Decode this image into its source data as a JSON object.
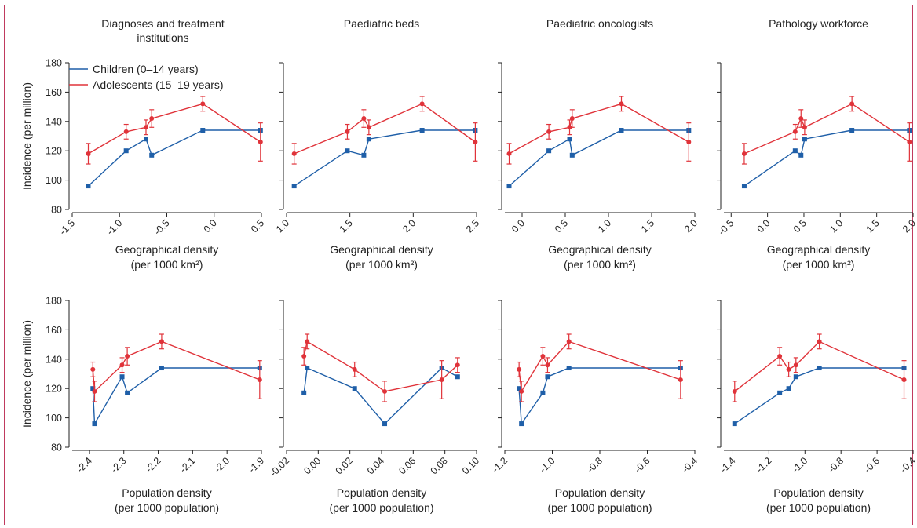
{
  "colors": {
    "children": "#1f5fa8",
    "adolescents": "#e0333a",
    "frame": "#c03a5e"
  },
  "legend": {
    "children": "Children (0–14 years)",
    "adolescents": "Adolescents (15–19 years)"
  },
  "ylabel": "Incidence (per million)",
  "chart_data": [
    {
      "type": "line",
      "title": "Diagnoses and treatment institutions",
      "xlabel": "Geographical density",
      "xlabel2": "(per 1000 km²)",
      "xlim": [
        -1.5,
        0.5
      ],
      "xticks": [
        "-1.5",
        "-1.0",
        "-0.5",
        "0.0",
        "0.5"
      ],
      "xtickvals": [
        -1.5,
        -1.0,
        -0.5,
        0.0,
        0.5
      ],
      "ylim": [
        80,
        180
      ],
      "yticks": [
        "80",
        "100",
        "120",
        "140",
        "160",
        "180"
      ],
      "ytickvals": [
        80,
        100,
        120,
        140,
        160,
        180
      ],
      "series": [
        {
          "name": "Children (0–14 years)",
          "x": [
            -1.33,
            -0.93,
            -0.72,
            -0.66,
            -0.12,
            0.49
          ],
          "y": [
            96,
            120,
            128,
            117,
            134,
            134
          ],
          "err": [
            0,
            0,
            0,
            0,
            0,
            0
          ]
        },
        {
          "name": "Adolescents (15–19 years)",
          "x": [
            -1.33,
            -0.93,
            -0.72,
            -0.66,
            -0.12,
            0.49
          ],
          "y": [
            118,
            133,
            136,
            142,
            152,
            126
          ],
          "err": [
            7,
            5,
            5,
            6,
            5,
            13
          ]
        }
      ]
    },
    {
      "type": "line",
      "title": "Paediatric beds",
      "xlabel": "Geographical density",
      "xlabel2": "(per 1000 km²)",
      "xlim": [
        1.0,
        2.5
      ],
      "xticks": [
        "1.0",
        "1.5",
        "2.0",
        "2.5"
      ],
      "xtickvals": [
        1.0,
        1.5,
        2.0,
        2.5
      ],
      "ylim": [
        80,
        180
      ],
      "yticks": [],
      "ytickvals": [
        80,
        100,
        120,
        140,
        160,
        180
      ],
      "series": [
        {
          "name": "Children (0–14 years)",
          "x": [
            1.06,
            1.48,
            1.61,
            1.65,
            2.07,
            2.49
          ],
          "y": [
            96,
            120,
            117,
            128,
            134,
            134
          ],
          "err": [
            0,
            0,
            0,
            0,
            0,
            0
          ]
        },
        {
          "name": "Adolescents (15–19 years)",
          "x": [
            1.06,
            1.48,
            1.61,
            1.65,
            2.07,
            2.49
          ],
          "y": [
            118,
            133,
            142,
            136,
            152,
            126
          ],
          "err": [
            7,
            5,
            6,
            5,
            5,
            13
          ]
        }
      ]
    },
    {
      "type": "line",
      "title": "Paediatric oncologists",
      "xlabel": "Geographical density",
      "xlabel2": "(per 1000 km²)",
      "xlim": [
        -0.2,
        2.0
      ],
      "xticks": [
        "0.0",
        "0.5",
        "1.0",
        "1.5",
        "2.0"
      ],
      "xtickvals": [
        0.0,
        0.5,
        1.0,
        1.5,
        2.0
      ],
      "ylim": [
        80,
        180
      ],
      "yticks": [],
      "ytickvals": [
        80,
        100,
        120,
        140,
        160,
        180
      ],
      "series": [
        {
          "name": "Children (0–14 years)",
          "x": [
            -0.15,
            0.31,
            0.55,
            0.58,
            1.15,
            1.93
          ],
          "y": [
            96,
            120,
            128,
            117,
            134,
            134
          ],
          "err": [
            0,
            0,
            0,
            0,
            0,
            0
          ]
        },
        {
          "name": "Adolescents (15–19 years)",
          "x": [
            -0.15,
            0.31,
            0.55,
            0.58,
            1.15,
            1.93
          ],
          "y": [
            118,
            133,
            136,
            142,
            152,
            126
          ],
          "err": [
            7,
            5,
            5,
            6,
            5,
            13
          ]
        }
      ]
    },
    {
      "type": "line",
      "title": "Pathology workforce",
      "xlabel": "Geographical density",
      "xlabel2": "(per 1000 km²)",
      "xlim": [
        -0.6,
        2.0
      ],
      "xticks": [
        "-0.5",
        "0.0",
        "0.5",
        "1.0",
        "1.5",
        "2.0"
      ],
      "xtickvals": [
        -0.5,
        0.0,
        0.5,
        1.0,
        1.5,
        2.0
      ],
      "ylim": [
        80,
        180
      ],
      "yticks": [],
      "ytickvals": [
        80,
        100,
        120,
        140,
        160,
        180
      ],
      "series": [
        {
          "name": "Children (0–14 years)",
          "x": [
            -0.32,
            0.38,
            0.46,
            0.51,
            1.16,
            1.95
          ],
          "y": [
            96,
            120,
            117,
            128,
            134,
            134
          ],
          "err": [
            0,
            0,
            0,
            0,
            0,
            0
          ]
        },
        {
          "name": "Adolescents (15–19 years)",
          "x": [
            -0.32,
            0.38,
            0.46,
            0.51,
            1.16,
            1.95
          ],
          "y": [
            118,
            133,
            142,
            136,
            152,
            126
          ],
          "err": [
            7,
            5,
            6,
            5,
            5,
            13
          ]
        }
      ]
    },
    {
      "type": "line",
      "title": "",
      "xlabel": "Population density",
      "xlabel2": "(per 1000 population)",
      "xlim": [
        -2.45,
        -1.9
      ],
      "xticks": [
        "-2.4",
        "-2.3",
        "-2.2",
        "-2.1",
        "-2.0",
        "-1.9"
      ],
      "xtickvals": [
        -2.4,
        -2.3,
        -2.2,
        -2.1,
        -2.0,
        -1.9
      ],
      "ylim": [
        80,
        180
      ],
      "yticks": [
        "80",
        "100",
        "120",
        "140",
        "160",
        "180"
      ],
      "ytickvals": [
        80,
        100,
        120,
        140,
        160,
        180
      ],
      "series": [
        {
          "name": "Children (0–14 years)",
          "x": [
            -2.39,
            -2.385,
            -2.305,
            -2.29,
            -2.19,
            -1.905
          ],
          "y": [
            120,
            96,
            128,
            117,
            134,
            134
          ],
          "err": [
            0,
            0,
            0,
            0,
            0,
            0
          ]
        },
        {
          "name": "Adolescents (15–19 years)",
          "x": [
            -2.39,
            -2.385,
            -2.305,
            -2.29,
            -2.19,
            -1.905
          ],
          "y": [
            133,
            118,
            136,
            142,
            152,
            126
          ],
          "err": [
            5,
            7,
            5,
            6,
            5,
            13
          ]
        }
      ]
    },
    {
      "type": "line",
      "title": "",
      "xlabel": "Population density",
      "xlabel2": "(per 1000 population)",
      "xlim": [
        -0.02,
        0.1
      ],
      "xticks": [
        "-0.02",
        "0.00",
        "0.02",
        "0.04",
        "0.06",
        "0.08",
        "0.10"
      ],
      "xtickvals": [
        -0.02,
        0.0,
        0.02,
        0.04,
        0.06,
        0.08,
        0.1
      ],
      "ylim": [
        80,
        180
      ],
      "yticks": [],
      "ytickvals": [
        80,
        100,
        120,
        140,
        160,
        180
      ],
      "series": [
        {
          "name": "Children (0–14 years)",
          "x": [
            -0.009,
            -0.007,
            0.023,
            0.042,
            0.078,
            0.088
          ],
          "y": [
            117,
            134,
            120,
            96,
            134,
            128
          ],
          "err": [
            0,
            0,
            0,
            0,
            0,
            0
          ]
        },
        {
          "name": "Adolescents (15–19 years)",
          "x": [
            -0.009,
            -0.007,
            0.023,
            0.042,
            0.078,
            0.088
          ],
          "y": [
            142,
            152,
            133,
            118,
            126,
            136
          ],
          "err": [
            6,
            5,
            5,
            7,
            13,
            5
          ]
        }
      ]
    },
    {
      "type": "line",
      "title": "",
      "xlabel": "Population density",
      "xlabel2": "(per 1000 population)",
      "xlim": [
        -1.2,
        -0.4
      ],
      "xticks": [
        "-1.2",
        "-1.0",
        "-0.8",
        "-0.6",
        "-0.4"
      ],
      "xtickvals": [
        -1.2,
        -1.0,
        -0.8,
        -0.6,
        -0.4
      ],
      "ylim": [
        80,
        180
      ],
      "yticks": [],
      "ytickvals": [
        80,
        100,
        120,
        140,
        160,
        180
      ],
      "series": [
        {
          "name": "Children (0–14 years)",
          "x": [
            -1.14,
            -1.13,
            -1.04,
            -1.02,
            -0.93,
            -0.46
          ],
          "y": [
            120,
            96,
            117,
            128,
            134,
            134
          ],
          "err": [
            0,
            0,
            0,
            0,
            0,
            0
          ]
        },
        {
          "name": "Adolescents (15–19 years)",
          "x": [
            -1.14,
            -1.13,
            -1.04,
            -1.02,
            -0.93,
            -0.46
          ],
          "y": [
            133,
            118,
            142,
            136,
            152,
            126
          ],
          "err": [
            5,
            7,
            6,
            5,
            5,
            13
          ]
        }
      ]
    },
    {
      "type": "line",
      "title": "",
      "xlabel": "Population density",
      "xlabel2": "(per 1000 population)",
      "xlim": [
        -1.45,
        -0.4
      ],
      "xticks": [
        "-1.4",
        "-1.2",
        "-1.0",
        "-0.8",
        "-0.6",
        "-0.4"
      ],
      "xtickvals": [
        -1.4,
        -1.2,
        -1.0,
        -0.8,
        -0.6,
        -0.4
      ],
      "ylim": [
        80,
        180
      ],
      "yticks": [],
      "ytickvals": [
        80,
        100,
        120,
        140,
        160,
        180
      ],
      "series": [
        {
          "name": "Children (0–14 years)",
          "x": [
            -1.39,
            -1.14,
            -1.09,
            -1.05,
            -0.92,
            -0.45
          ],
          "y": [
            96,
            117,
            120,
            128,
            134,
            134
          ],
          "err": [
            0,
            0,
            0,
            0,
            0,
            0
          ]
        },
        {
          "name": "Adolescents (15–19 years)",
          "x": [
            -1.39,
            -1.14,
            -1.09,
            -1.05,
            -0.92,
            -0.45
          ],
          "y": [
            118,
            142,
            133,
            136,
            152,
            126
          ],
          "err": [
            7,
            6,
            5,
            5,
            5,
            13
          ]
        }
      ]
    }
  ]
}
